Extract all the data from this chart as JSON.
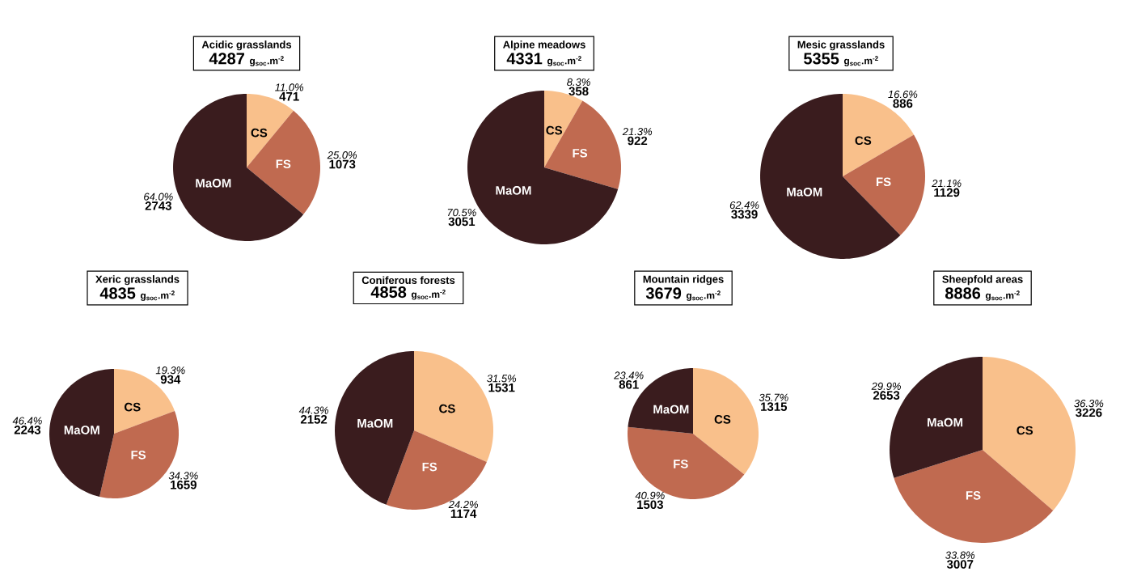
{
  "chart_data": [
    {
      "type": "pie",
      "title": "Acidic grasslands",
      "subtitle": "4287",
      "annotations": [
        "g$_{soc}$.m$^{-2}$",
        {
          "text": "471",
          "x": "CS"
        },
        {
          "text": "1073",
          "x": "FS"
        },
        {
          "text": "2743",
          "x": "MaOM"
        }
      ],
      "categories": [
        "CS",
        "FS",
        "MaOM"
      ],
      "values": [
        11.0,
        25.0,
        64.0
      ],
      "value_labels": [
        "11.0%",
        "25.0%",
        "64.0%"
      ],
      "colors": [
        "#f9c08b",
        "#c06a50",
        "#3a1c1e"
      ]
    },
    {
      "type": "pie",
      "title": "Alpine meadows",
      "subtitle": "4331",
      "annotations": [
        "g$_{soc}$.m$^{-2}$",
        {
          "text": "358",
          "x": "CS"
        },
        {
          "text": "922",
          "x": "FS"
        },
        {
          "text": "3051",
          "x": "MaOM"
        }
      ],
      "categories": [
        "CS",
        "FS",
        "MaOM"
      ],
      "values": [
        8.3,
        21.3,
        70.5
      ],
      "value_labels": [
        "8.3%",
        "21.3%",
        "70.5%"
      ],
      "colors": [
        "#f9c08b",
        "#c06a50",
        "#3a1c1e"
      ]
    },
    {
      "type": "pie",
      "title": "Mesic grasslands",
      "subtitle": "5355",
      "annotations": [
        "g$_{soc}$.m$^{-2}$",
        {
          "text": "886",
          "x": "CS"
        },
        {
          "text": "1129",
          "x": "FS"
        },
        {
          "text": "3339",
          "x": "MaOM"
        }
      ],
      "categories": [
        "CS",
        "FS",
        "MaOM"
      ],
      "values": [
        16.6,
        21.1,
        62.4
      ],
      "value_labels": [
        "16.6%",
        "21.1%",
        "62.4%"
      ],
      "colors": [
        "#f9c08b",
        "#c06a50",
        "#3a1c1e"
      ]
    },
    {
      "type": "pie",
      "title": "Xeric grasslands",
      "subtitle": "4835",
      "annotations": [
        "g$_{soc}$.m$^{-2}$",
        {
          "text": "934",
          "x": "CS"
        },
        {
          "text": "1659",
          "x": "FS"
        },
        {
          "text": "2243",
          "x": "MaOM"
        }
      ],
      "categories": [
        "CS",
        "FS",
        "MaOM"
      ],
      "values": [
        19.3,
        34.3,
        46.4
      ],
      "value_labels": [
        "19.3%",
        "34.3%",
        "46.4%"
      ],
      "colors": [
        "#f9c08b",
        "#c06a50",
        "#3a1c1e"
      ]
    },
    {
      "type": "pie",
      "title": "Coniferous forests",
      "subtitle": "4858",
      "annotations": [
        "g$_{soc}$.m$^{-2}$",
        {
          "text": "1531",
          "x": "CS"
        },
        {
          "text": "1174",
          "x": "FS"
        },
        {
          "text": "2152",
          "x": "MaOM"
        }
      ],
      "categories": [
        "CS",
        "FS",
        "MaOM"
      ],
      "values": [
        31.5,
        24.2,
        44.3
      ],
      "value_labels": [
        "31.5%",
        "24.2%",
        "44.3%"
      ],
      "colors": [
        "#f9c08b",
        "#c06a50",
        "#3a1c1e"
      ]
    },
    {
      "type": "pie",
      "title": "Mountain ridges",
      "subtitle": "3679",
      "annotations": [
        "g$_{soc}$.m$^{-2}$",
        {
          "text": "1315",
          "x": "CS"
        },
        {
          "text": "1503",
          "x": "FS"
        },
        {
          "text": "861",
          "x": "MaOM"
        }
      ],
      "categories": [
        "CS",
        "FS",
        "MaOM"
      ],
      "values": [
        35.7,
        40.9,
        23.4
      ],
      "value_labels": [
        "35.7%",
        "40.9%",
        "23.4%"
      ],
      "colors": [
        "#f9c08b",
        "#c06a50",
        "#3a1c1e"
      ]
    },
    {
      "type": "pie",
      "title": "Sheepfold areas",
      "subtitle": "8886",
      "annotations": [
        "g$_{soc}$.m$^{-2}$",
        {
          "text": "3226",
          "x": "CS"
        },
        {
          "text": "3007",
          "x": "FS"
        },
        {
          "text": "2653",
          "x": "MaOM"
        }
      ],
      "categories": [
        "CS",
        "FS",
        "MaOM"
      ],
      "values": [
        36.3,
        33.8,
        29.9
      ],
      "value_labels": [
        "36.3%",
        "33.8%",
        "29.9%"
      ],
      "colors": [
        "#f9c08b",
        "#c06a50",
        "#3a1c1e"
      ]
    }
  ]
}
